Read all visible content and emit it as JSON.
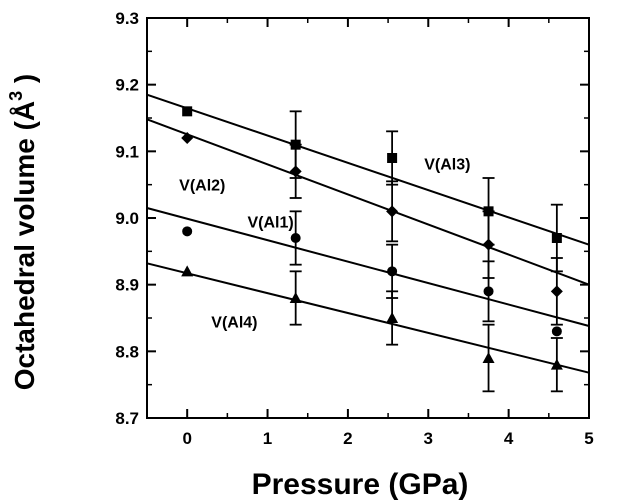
{
  "chart_data": {
    "type": "scatter",
    "title": "",
    "xlabel": "Pressure  (GPa)",
    "ylabel_main": "Octahedral volume (",
    "ylabel_unit": "Å",
    "ylabel_exp": "3",
    "ylabel_close": " )",
    "xlim": [
      -0.5,
      5
    ],
    "ylim": [
      8.7,
      9.3
    ],
    "xticks": [
      "0",
      "1",
      "2",
      "3",
      "4",
      "5"
    ],
    "yticks": [
      "8.7",
      "8.8",
      "8.9",
      "9.0",
      "9.1",
      "9.2",
      "9.3"
    ],
    "grid": false,
    "legend": "none",
    "series": [
      {
        "name": "V(Al3)",
        "marker": "square",
        "points": [
          {
            "x": 0,
            "y": 9.16,
            "err": 0
          },
          {
            "x": 1.35,
            "y": 9.11,
            "err": 0.05
          },
          {
            "x": 2.55,
            "y": 9.09,
            "err": 0.04
          },
          {
            "x": 3.75,
            "y": 9.01,
            "err": 0.05
          },
          {
            "x": 4.6,
            "y": 8.97,
            "err": 0.05
          }
        ],
        "fit": {
          "x": [
            -0.5,
            5
          ],
          "y": [
            9.185,
            8.96
          ]
        }
      },
      {
        "name": "V(Al2)",
        "marker": "diamond",
        "points": [
          {
            "x": 0,
            "y": 9.12,
            "err": 0
          },
          {
            "x": 1.35,
            "y": 9.07,
            "err": 0.04
          },
          {
            "x": 2.55,
            "y": 9.01,
            "err": 0.045
          },
          {
            "x": 3.75,
            "y": 8.96,
            "err": 0.05
          },
          {
            "x": 4.6,
            "y": 8.89,
            "err": 0.05
          }
        ],
        "fit": {
          "x": [
            -0.5,
            5
          ],
          "y": [
            9.148,
            8.9
          ]
        }
      },
      {
        "name": "V(Al1)",
        "marker": "circle",
        "points": [
          {
            "x": 0,
            "y": 8.98,
            "err": 0
          },
          {
            "x": 1.35,
            "y": 8.97,
            "err": 0.04
          },
          {
            "x": 2.55,
            "y": 8.92,
            "err": 0.04
          },
          {
            "x": 3.75,
            "y": 8.89,
            "err": 0.045
          },
          {
            "x": 4.6,
            "y": 8.83,
            "err": 0.0
          }
        ],
        "fit": {
          "x": [
            -0.5,
            5
          ],
          "y": [
            9.015,
            8.838
          ]
        }
      },
      {
        "name": "V(Al4)",
        "marker": "triangle",
        "points": [
          {
            "x": 0,
            "y": 8.92,
            "err": 0
          },
          {
            "x": 1.35,
            "y": 8.88,
            "err": 0.04
          },
          {
            "x": 2.55,
            "y": 8.85,
            "err": 0.04
          },
          {
            "x": 3.75,
            "y": 8.79,
            "err": 0.05
          },
          {
            "x": 4.6,
            "y": 8.78,
            "err": 0.04
          }
        ],
        "fit": {
          "x": [
            -0.5,
            5
          ],
          "y": [
            8.932,
            8.768
          ]
        }
      }
    ],
    "series_labels": [
      {
        "text": "V(Al3)",
        "x": 2.95,
        "y": 9.082
      },
      {
        "text": "V(Al2)",
        "x": -0.1,
        "y": 9.05
      },
      {
        "text": "V(Al1)",
        "x": 0.75,
        "y": 8.995
      },
      {
        "text": "V(Al4)",
        "x": 0.3,
        "y": 8.845
      }
    ]
  }
}
